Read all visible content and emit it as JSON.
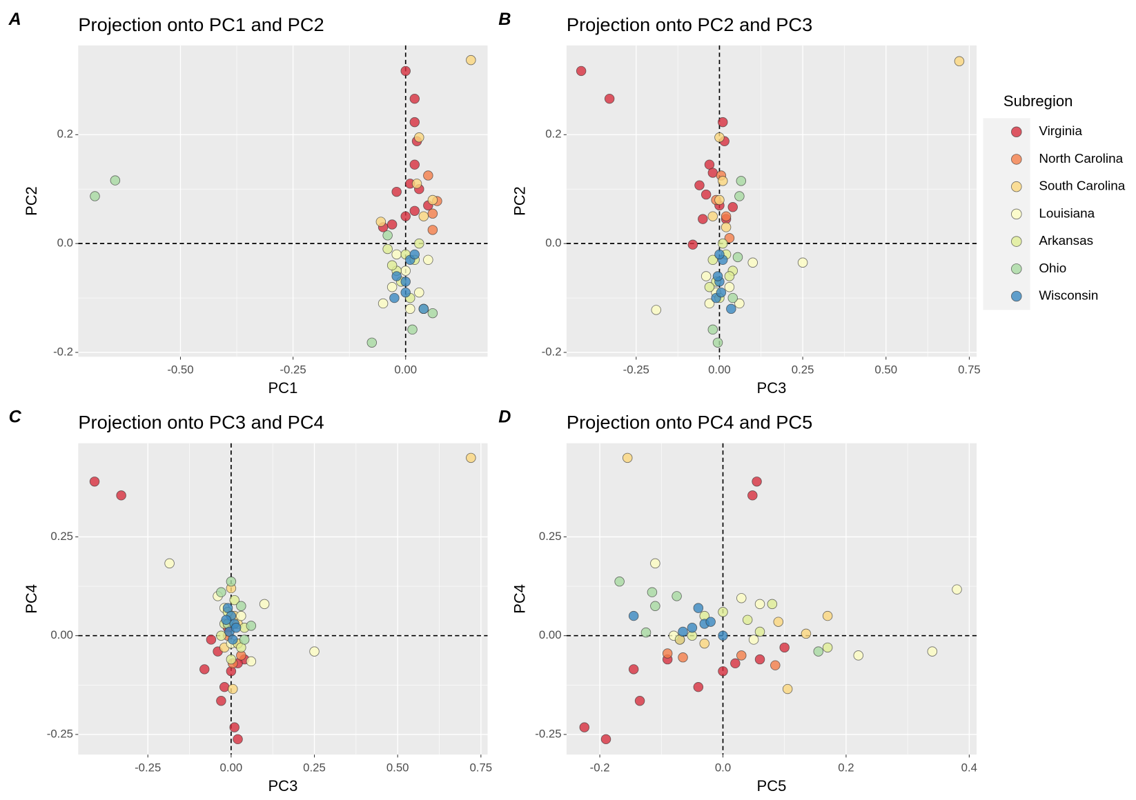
{
  "chart_data": [
    {
      "type": "scatter",
      "label": "A",
      "title": "Projection onto PC1 and PC2",
      "x_label": "PC1",
      "y_label": "PC2",
      "xlim": [
        -0.727,
        0.182
      ],
      "ylim": [
        -0.208,
        0.364
      ],
      "xticks": [
        {
          "value": -0.5,
          "label": "-0.50"
        },
        {
          "value": -0.25,
          "label": "-0.25"
        },
        {
          "value": 0,
          "label": "0.00"
        }
      ],
      "yticks": [
        -0.2,
        {
          "value": 0,
          "label": "0.0"
        },
        0.2
      ],
      "series": [
        {
          "x": [
            0.0,
            0.02,
            0.02,
            0.025,
            0.02,
            0.01,
            -0.02,
            0.03,
            0.05,
            -0.03,
            0.0,
            0.02,
            -0.05
          ],
          "y": [
            0.317,
            0.266,
            0.223,
            0.188,
            0.145,
            0.11,
            0.095,
            0.1,
            0.07,
            0.035,
            0.05,
            0.06,
            0.03
          ]
        },
        {
          "x": [
            0.05,
            0.06,
            0.07,
            0.06
          ],
          "y": [
            0.125,
            0.055,
            0.078,
            0.025
          ]
        },
        {
          "x": [
            0.145,
            0.03,
            0.04,
            0.025,
            -0.055,
            0.06
          ],
          "y": [
            0.337,
            0.195,
            0.05,
            0.11,
            0.04,
            0.08
          ]
        },
        {
          "x": [
            -0.05,
            -0.03,
            0.01,
            0.04,
            0.05,
            0.0,
            -0.02,
            0.03
          ],
          "y": [
            -0.11,
            -0.08,
            -0.12,
            -0.12,
            -0.03,
            -0.05,
            -0.02,
            -0.09
          ]
        },
        {
          "x": [
            -0.04,
            -0.02,
            0.02,
            0.03,
            -0.01,
            0.01,
            0.0,
            -0.03
          ],
          "y": [
            -0.01,
            -0.05,
            -0.03,
            0.0,
            -0.07,
            -0.1,
            -0.02,
            -0.04
          ]
        },
        {
          "x": [
            -0.69,
            -0.645,
            -0.075,
            0.015,
            0.06,
            -0.04
          ],
          "y": [
            0.087,
            0.116,
            -0.182,
            -0.158,
            -0.128,
            0.015
          ]
        },
        {
          "x": [
            -0.025,
            0.0,
            0.01,
            0.04,
            -0.02,
            0.0,
            0.02
          ],
          "y": [
            -0.1,
            -0.07,
            -0.03,
            -0.12,
            -0.06,
            -0.09,
            -0.02
          ]
        }
      ]
    },
    {
      "type": "scatter",
      "label": "B",
      "title": "Projection onto PC2 and PC3",
      "x_label": "PC3",
      "y_label": "PC2",
      "xlim": [
        -0.459,
        0.772
      ],
      "ylim": [
        -0.208,
        0.364
      ],
      "xticks": [
        -0.25,
        {
          "value": 0,
          "label": "0.00"
        },
        0.25,
        {
          "value": 0.5,
          "label": "0.50"
        },
        0.75
      ],
      "yticks": [
        -0.2,
        {
          "value": 0,
          "label": "0.0"
        },
        0.2
      ],
      "series": [
        {
          "x": [
            -0.415,
            -0.33,
            0.01,
            0.015,
            -0.03,
            -0.02,
            -0.06,
            -0.08,
            -0.04,
            0.0,
            0.04,
            0.02,
            -0.05
          ],
          "y": [
            0.317,
            0.266,
            0.223,
            0.188,
            0.145,
            0.13,
            0.107,
            -0.002,
            0.09,
            0.07,
            0.067,
            0.045,
            0.045
          ]
        },
        {
          "x": [
            0.005,
            0.03,
            0.02,
            -0.01
          ],
          "y": [
            0.125,
            0.01,
            0.05,
            0.08
          ]
        },
        {
          "x": [
            0.72,
            0.0,
            0.01,
            -0.02,
            0.02,
            0.0
          ],
          "y": [
            0.335,
            0.195,
            0.115,
            0.05,
            0.03,
            0.08
          ]
        },
        {
          "x": [
            -0.19,
            0.1,
            0.25,
            0.06,
            -0.03,
            -0.01,
            0.03,
            -0.04
          ],
          "y": [
            -0.122,
            -0.035,
            -0.035,
            -0.11,
            -0.11,
            -0.09,
            -0.08,
            -0.06
          ]
        },
        {
          "x": [
            -0.02,
            0.02,
            -0.01,
            0.04,
            0.0,
            -0.03,
            0.01,
            0.03
          ],
          "y": [
            -0.03,
            -0.02,
            -0.07,
            -0.05,
            -0.1,
            -0.08,
            0.0,
            -0.06
          ]
        },
        {
          "x": [
            0.065,
            0.06,
            -0.005,
            -0.02,
            0.04,
            0.055
          ],
          "y": [
            0.115,
            0.087,
            -0.182,
            -0.158,
            -0.1,
            -0.025
          ]
        },
        {
          "x": [
            -0.01,
            0.0,
            0.01,
            0.035,
            -0.005,
            0.005,
            0.0
          ],
          "y": [
            -0.1,
            -0.07,
            -0.03,
            -0.12,
            -0.06,
            -0.09,
            -0.02
          ]
        }
      ]
    },
    {
      "type": "scatter",
      "label": "C",
      "title": "Projection onto PC3 and PC4",
      "x_label": "PC3",
      "y_label": "PC4",
      "xlim": [
        -0.459,
        0.77
      ],
      "ylim": [
        -0.301,
        0.487
      ],
      "xticks": [
        -0.25,
        {
          "value": 0,
          "label": "0.00"
        },
        0.25,
        {
          "value": 0.5,
          "label": "0.50"
        },
        0.75
      ],
      "yticks": [
        -0.25,
        {
          "value": 0,
          "label": "0.00"
        },
        0.25
      ],
      "series": [
        {
          "x": [
            -0.41,
            -0.33,
            0.01,
            0.02,
            -0.08,
            -0.03,
            -0.02,
            -0.06,
            0.0,
            0.04,
            -0.04,
            -0.01,
            0.02
          ],
          "y": [
            0.39,
            0.355,
            -0.232,
            -0.262,
            -0.085,
            -0.165,
            -0.13,
            -0.01,
            -0.09,
            -0.06,
            -0.04,
            0.02,
            -0.07
          ]
        },
        {
          "x": [
            0.005,
            0.02,
            -0.01,
            0.03
          ],
          "y": [
            -0.07,
            -0.02,
            0.0,
            -0.05
          ]
        },
        {
          "x": [
            0.72,
            0.005,
            0.0,
            0.02,
            -0.02,
            0.01
          ],
          "y": [
            0.45,
            -0.135,
            0.12,
            0.03,
            -0.03,
            0.05
          ]
        },
        {
          "x": [
            -0.185,
            0.1,
            0.25,
            0.06,
            -0.04,
            0.03,
            0.0,
            -0.02
          ],
          "y": [
            0.183,
            0.08,
            -0.04,
            -0.065,
            0.1,
            0.05,
            -0.02,
            0.07
          ]
        },
        {
          "x": [
            -0.02,
            0.02,
            -0.01,
            0.04,
            0.0,
            -0.03,
            0.01,
            0.03
          ],
          "y": [
            0.03,
            -0.02,
            0.06,
            0.02,
            -0.06,
            0.0,
            0.09,
            -0.03
          ]
        },
        {
          "x": [
            -0.03,
            0.0,
            0.06,
            0.03,
            -0.01,
            0.04
          ],
          "y": [
            0.11,
            0.137,
            0.025,
            0.075,
            0.03,
            -0.01
          ]
        },
        {
          "x": [
            -0.01,
            0.0,
            0.01,
            -0.005,
            0.005,
            0.015,
            -0.015
          ],
          "y": [
            0.07,
            0.05,
            0.03,
            0.01,
            -0.01,
            0.02,
            0.04
          ]
        }
      ]
    },
    {
      "type": "scatter",
      "label": "D",
      "title": "Projection onto PC4 and PC5",
      "x_label": "PC5",
      "y_label": "PC4",
      "xlim": [
        -0.254,
        0.412
      ],
      "ylim": [
        -0.301,
        0.487
      ],
      "xticks": [
        -0.2,
        {
          "value": 0,
          "label": "0.0"
        },
        0.2,
        0.4
      ],
      "yticks": [
        -0.25,
        {
          "value": 0,
          "label": "0.00"
        },
        0.25
      ],
      "series": [
        {
          "x": [
            0.055,
            0.048,
            -0.225,
            -0.19,
            -0.145,
            -0.135,
            -0.04,
            -0.07,
            0.0,
            0.06,
            0.1,
            0.02,
            -0.09
          ],
          "y": [
            0.39,
            0.355,
            -0.232,
            -0.262,
            -0.085,
            -0.165,
            -0.13,
            -0.01,
            -0.09,
            -0.06,
            -0.03,
            -0.07,
            -0.06
          ]
        },
        {
          "x": [
            -0.09,
            0.03,
            -0.065,
            0.085
          ],
          "y": [
            -0.045,
            -0.05,
            -0.055,
            -0.075
          ]
        },
        {
          "x": [
            -0.155,
            0.105,
            0.17,
            0.135,
            0.09,
            -0.03
          ],
          "y": [
            0.45,
            -0.135,
            0.05,
            0.005,
            0.035,
            -0.02
          ]
        },
        {
          "x": [
            -0.11,
            0.38,
            0.22,
            0.34,
            0.03,
            0.06,
            -0.08,
            0.05
          ],
          "y": [
            0.183,
            0.117,
            -0.05,
            -0.04,
            0.095,
            0.08,
            0.0,
            -0.01
          ]
        },
        {
          "x": [
            -0.07,
            0.17,
            0.08,
            -0.03,
            0.04,
            0.0,
            0.06,
            -0.05
          ],
          "y": [
            -0.01,
            -0.03,
            0.08,
            0.05,
            0.04,
            0.06,
            0.01,
            0.0
          ]
        },
        {
          "x": [
            -0.168,
            -0.115,
            -0.125,
            -0.11,
            0.155,
            -0.075
          ],
          "y": [
            0.137,
            0.11,
            0.008,
            0.075,
            -0.04,
            0.1
          ]
        },
        {
          "x": [
            -0.145,
            -0.04,
            -0.03,
            -0.065,
            -0.05,
            0.0,
            -0.02
          ],
          "y": [
            0.05,
            0.07,
            0.03,
            0.01,
            0.02,
            0.0,
            0.035
          ]
        }
      ]
    }
  ],
  "legend": {
    "title": "Subregion",
    "entries": [
      {
        "name": "Virginia",
        "color": "#d7303f"
      },
      {
        "name": "North Carolina",
        "color": "#f47e4a"
      },
      {
        "name": "South Carolina",
        "color": "#fbd77e"
      },
      {
        "name": "Louisiana",
        "color": "#fcfcc2"
      },
      {
        "name": "Arkansas",
        "color": "#e0ed95"
      },
      {
        "name": "Ohio",
        "color": "#a7d9a1"
      },
      {
        "name": "Wisconsin",
        "color": "#3a88c1"
      }
    ]
  }
}
